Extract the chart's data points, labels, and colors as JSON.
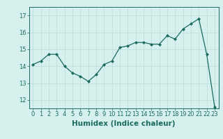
{
  "x": [
    0,
    1,
    2,
    3,
    4,
    5,
    6,
    7,
    8,
    9,
    10,
    11,
    12,
    13,
    14,
    15,
    16,
    17,
    18,
    19,
    20,
    21,
    22,
    23
  ],
  "y": [
    14.1,
    14.3,
    14.7,
    14.7,
    14.0,
    13.6,
    13.4,
    13.1,
    13.5,
    14.1,
    14.3,
    15.1,
    15.2,
    15.4,
    15.4,
    15.3,
    15.3,
    15.8,
    15.6,
    16.2,
    16.5,
    16.8,
    14.7,
    11.6
  ],
  "xlabel": "Humidex (Indice chaleur)",
  "ylim": [
    11.5,
    17.5
  ],
  "xlim": [
    -0.5,
    23.5
  ],
  "yticks": [
    12,
    13,
    14,
    15,
    16,
    17
  ],
  "xticks": [
    0,
    1,
    2,
    3,
    4,
    5,
    6,
    7,
    8,
    9,
    10,
    11,
    12,
    13,
    14,
    15,
    16,
    17,
    18,
    19,
    20,
    21,
    22,
    23
  ],
  "line_color": "#1a6b5e",
  "marker": "D",
  "marker_size": 2.0,
  "bg_color": "#d6f0ee",
  "grid_color": "#b8ddd9",
  "axis_color": "#1a6b5e",
  "label_color": "#1a6b5e",
  "tick_label_color": "#1a6b5e",
  "xlabel_fontsize": 7.5,
  "tick_fontsize": 6.0,
  "linewidth": 0.9
}
